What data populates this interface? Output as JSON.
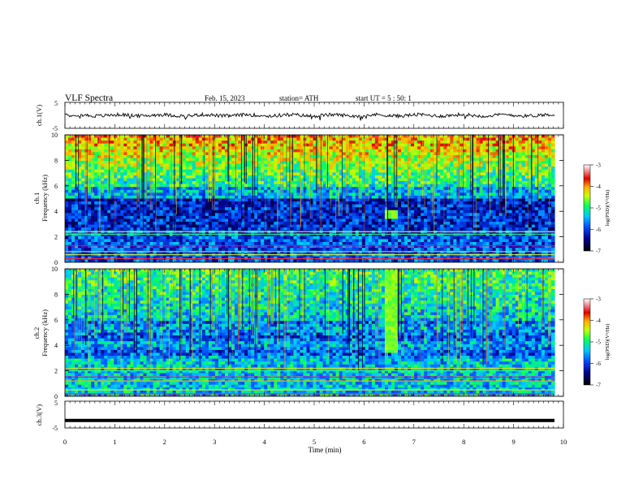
{
  "header": {
    "title": "VLF  Spectra",
    "date": "Feb. 15, 2023",
    "station": "station= ATH",
    "start": "start  UT  =    5  : 50: 1"
  },
  "chart_data": [
    {
      "type": "line",
      "name": "ch1-waveform",
      "ylabel": "ch.1(V)",
      "ylim": [
        -5,
        5
      ],
      "yticks": [
        "5",
        "-5"
      ],
      "xlim": [
        0,
        10
      ],
      "approx_level": 0,
      "approx_amplitude": 1.2
    },
    {
      "type": "heatmap",
      "name": "ch1-spectrogram",
      "ylabel": [
        "ch.1",
        "Frequency  (kHz)"
      ],
      "ylim": [
        0,
        10
      ],
      "yticks": [
        "0",
        "2",
        "4",
        "6",
        "8",
        "10"
      ],
      "xlim": [
        0,
        10
      ],
      "features": {
        "strong_lines_khz": [
          0.3,
          0.6,
          0.85,
          1.3,
          2.2,
          2.4
        ],
        "quiet_band_khz": [
          2.5,
          5.0
        ],
        "burst_time_min": 6.55,
        "burst_khz": [
          3.5,
          4.0
        ]
      },
      "colorbar": {
        "label": "log(PSD)(V²/Hz)",
        "range": [
          -7,
          -3
        ],
        "ticks": [
          "-3",
          "-4",
          "-5",
          "-6",
          "-7"
        ]
      }
    },
    {
      "type": "heatmap",
      "name": "ch2-spectrogram",
      "ylabel": [
        "ch.2",
        "Frequency  (kHz)"
      ],
      "ylim": [
        0,
        10
      ],
      "yticks": [
        "0",
        "2",
        "4",
        "6",
        "8",
        "10"
      ],
      "xlim": [
        0,
        10
      ],
      "features": {
        "strong_lines_khz": [
          0.2,
          0.5,
          1.2,
          1.5,
          2.0,
          2.2
        ],
        "burst_time_min": 6.55,
        "burst_khz": [
          3.5,
          10.0
        ]
      },
      "colorbar": {
        "label": "log(PSD)(V²/Hz)",
        "range": [
          -7,
          -3
        ],
        "ticks": [
          "-3",
          "-4",
          "-5",
          "-6",
          "-7"
        ]
      }
    },
    {
      "type": "line",
      "name": "ch3-waveform",
      "ylabel": "ch.3(V)",
      "ylim": [
        -5,
        5
      ],
      "yticks": [
        "5",
        "-5"
      ],
      "xlim": [
        0,
        10
      ],
      "approx_level": -2.2,
      "xlabel": "Time  (min)",
      "xticks": [
        "0",
        "1",
        "2",
        "3",
        "4",
        "5",
        "6",
        "7",
        "8",
        "9",
        "10"
      ]
    }
  ]
}
